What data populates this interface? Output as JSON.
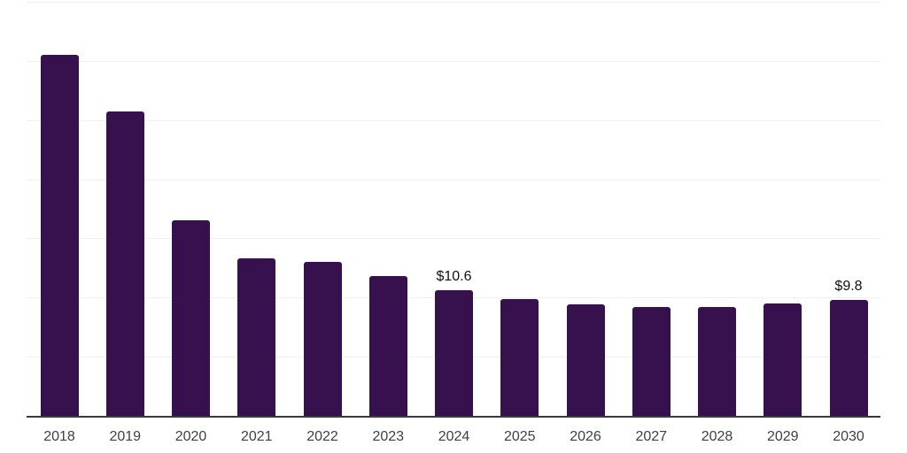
{
  "chart_data": {
    "type": "bar",
    "title": "",
    "xlabel": "",
    "ylabel": "",
    "categories": [
      "2018",
      "2019",
      "2020",
      "2021",
      "2022",
      "2023",
      "2024",
      "2025",
      "2026",
      "2027",
      "2028",
      "2029",
      "2030"
    ],
    "values": [
      30.5,
      25.7,
      16.5,
      13.3,
      13.0,
      11.8,
      10.6,
      9.9,
      9.4,
      9.2,
      9.2,
      9.5,
      9.8
    ],
    "data_labels": [
      {
        "index": 6,
        "text": "$10.6"
      },
      {
        "index": 12,
        "text": "$9.8"
      }
    ],
    "ylim": [
      0,
      35
    ],
    "gridline_step": 5,
    "grid": "horizontal-only",
    "legend": "none",
    "y_axis_tick_labels": "none",
    "colors": {
      "bar": "#36114d",
      "gridline": "#f1f1f1",
      "axis_line": "#3a3a3a",
      "tick_label": "#404040",
      "data_label": "#111111",
      "background": "#ffffff"
    }
  }
}
